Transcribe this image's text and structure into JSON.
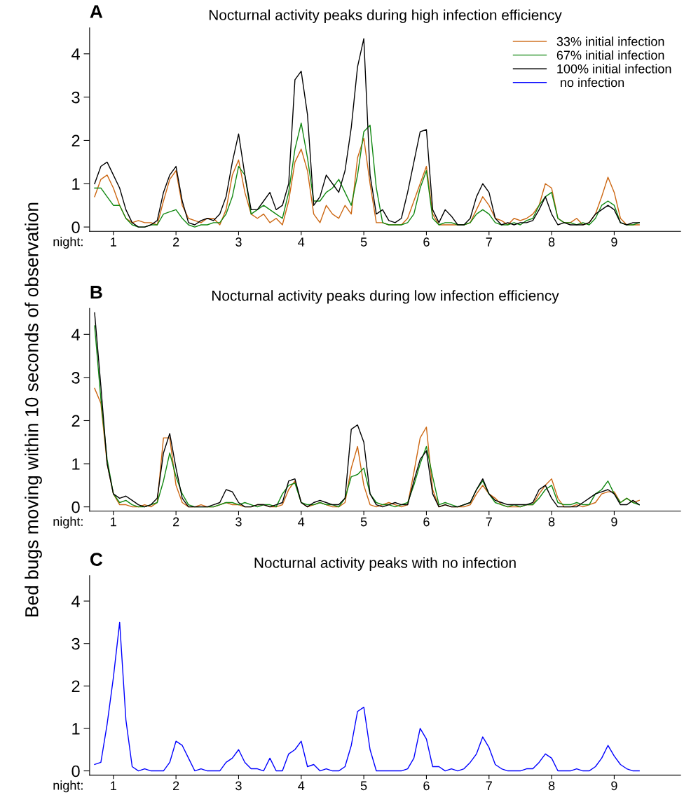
{
  "chart_data": [
    {
      "type": "line",
      "title": "Nocturnal activity peaks during high infection efficiency",
      "annotations": [
        "A"
      ],
      "xlabel": "night:",
      "xlim": [
        0.62,
        10.06
      ],
      "xticks": [
        1,
        2,
        3,
        4,
        5,
        6,
        7,
        8,
        9
      ],
      "ylim": [
        -0.1,
        4.6
      ],
      "yticks": [
        0,
        1,
        2,
        3,
        4
      ],
      "legend": "top right",
      "grid": false,
      "marker": "none",
      "line_style": "solid",
      "x": [
        0.7,
        0.8,
        0.9,
        1.0,
        1.1,
        1.2,
        1.3,
        1.4,
        1.5,
        1.6,
        1.7,
        1.8,
        1.9,
        2.0,
        2.1,
        2.2,
        2.3,
        2.4,
        2.5,
        2.6,
        2.7,
        2.8,
        2.9,
        3.0,
        3.1,
        3.2,
        3.3,
        3.4,
        3.5,
        3.6,
        3.7,
        3.8,
        3.9,
        4.0,
        4.1,
        4.2,
        4.3,
        4.4,
        4.5,
        4.6,
        4.7,
        4.8,
        4.9,
        5.0,
        5.1,
        5.2,
        5.3,
        5.4,
        5.5,
        5.6,
        5.7,
        5.8,
        5.9,
        6.0,
        6.1,
        6.2,
        6.3,
        6.4,
        6.5,
        6.6,
        6.7,
        6.8,
        6.9,
        7.0,
        7.1,
        7.2,
        7.3,
        7.4,
        7.5,
        7.6,
        7.7,
        7.8,
        7.9,
        8.0,
        8.1,
        8.2,
        8.3,
        8.4,
        8.5,
        8.6,
        8.7,
        8.8,
        8.9,
        9.0,
        9.1,
        9.2,
        9.3,
        9.4
      ],
      "series": [
        {
          "name": "33% initial infection",
          "color": "#cc6611",
          "values": [
            0.7,
            1.1,
            1.2,
            0.9,
            0.5,
            0.2,
            0.1,
            0.15,
            0.1,
            0.1,
            0.05,
            0.6,
            1.1,
            1.3,
            0.5,
            0.2,
            0.15,
            0.1,
            0.2,
            0.2,
            0.05,
            0.4,
            1.2,
            1.55,
            0.8,
            0.3,
            0.2,
            0.3,
            0.1,
            0.2,
            0.05,
            0.6,
            1.5,
            1.8,
            1.3,
            0.3,
            0.1,
            0.5,
            0.3,
            0.2,
            0.5,
            0.3,
            1.6,
            2.05,
            1.0,
            0.1,
            0.1,
            0.05,
            0.05,
            0.05,
            0.2,
            0.6,
            1.0,
            1.4,
            0.3,
            0.05,
            0.05,
            0.05,
            0.05,
            0.05,
            0.1,
            0.4,
            0.7,
            0.5,
            0.2,
            0.15,
            0.05,
            0.2,
            0.15,
            0.2,
            0.3,
            0.5,
            1.0,
            0.9,
            0.2,
            0.1,
            0.1,
            0.2,
            0.05,
            0.1,
            0.3,
            0.7,
            1.15,
            0.8,
            0.2,
            0.05,
            0.05,
            0.05
          ]
        },
        {
          "name": "67% initial infection",
          "color": "#118811",
          "values": [
            0.9,
            0.9,
            0.7,
            0.5,
            0.5,
            0.2,
            0.05,
            0.0,
            0.0,
            0.05,
            0.05,
            0.3,
            0.35,
            0.4,
            0.2,
            0.05,
            0.0,
            0.05,
            0.05,
            0.1,
            0.1,
            0.3,
            0.7,
            1.4,
            1.2,
            0.3,
            0.4,
            0.5,
            0.4,
            0.3,
            0.2,
            0.8,
            1.8,
            2.4,
            1.6,
            0.6,
            0.6,
            0.8,
            0.9,
            1.1,
            0.8,
            0.5,
            1.2,
            2.2,
            2.35,
            0.9,
            0.1,
            0.05,
            0.05,
            0.05,
            0.1,
            0.3,
            0.9,
            1.3,
            0.2,
            0.05,
            0.1,
            0.1,
            0.05,
            0.05,
            0.1,
            0.3,
            0.4,
            0.3,
            0.1,
            0.05,
            0.05,
            0.1,
            0.05,
            0.15,
            0.2,
            0.5,
            0.7,
            0.8,
            0.2,
            0.1,
            0.1,
            0.05,
            0.1,
            0.05,
            0.2,
            0.5,
            0.6,
            0.5,
            0.1,
            0.05,
            0.05,
            0.1
          ]
        },
        {
          "name": "100% initial infection",
          "color": "#000000",
          "values": [
            1.0,
            1.4,
            1.5,
            1.2,
            0.9,
            0.4,
            0.1,
            0.0,
            0.0,
            0.05,
            0.15,
            0.8,
            1.2,
            1.4,
            0.6,
            0.1,
            0.05,
            0.15,
            0.2,
            0.15,
            0.3,
            0.7,
            1.5,
            2.15,
            1.2,
            0.4,
            0.4,
            0.6,
            0.8,
            0.4,
            0.5,
            1.0,
            3.4,
            3.6,
            2.6,
            0.5,
            0.7,
            1.2,
            1.0,
            0.8,
            1.3,
            2.3,
            3.7,
            4.35,
            1.2,
            0.3,
            0.4,
            0.15,
            0.1,
            0.2,
            0.8,
            1.5,
            2.2,
            2.25,
            0.4,
            0.1,
            0.4,
            0.25,
            0.05,
            0.05,
            0.2,
            0.7,
            1.0,
            0.8,
            0.2,
            0.05,
            0.1,
            0.05,
            0.1,
            0.1,
            0.15,
            0.4,
            0.7,
            0.3,
            0.05,
            0.1,
            0.05,
            0.05,
            0.05,
            0.1,
            0.3,
            0.4,
            0.5,
            0.4,
            0.1,
            0.05,
            0.1,
            0.1
          ]
        }
      ]
    },
    {
      "type": "line",
      "title": "Nocturnal activity peaks during low infection efficiency",
      "annotations": [
        "B"
      ],
      "xlabel": "night:",
      "ylabel": "Bed bugs moving within 10 seconds of observation",
      "xlim": [
        0.62,
        10.06
      ],
      "xticks": [
        1,
        2,
        3,
        4,
        5,
        6,
        7,
        8,
        9
      ],
      "ylim": [
        -0.1,
        4.6
      ],
      "yticks": [
        0,
        1,
        2,
        3,
        4
      ],
      "grid": false,
      "marker": "none",
      "line_style": "solid",
      "x": [
        0.7,
        0.8,
        0.9,
        1.0,
        1.1,
        1.2,
        1.3,
        1.4,
        1.5,
        1.6,
        1.7,
        1.8,
        1.9,
        2.0,
        2.1,
        2.2,
        2.3,
        2.4,
        2.5,
        2.6,
        2.7,
        2.8,
        2.9,
        3.0,
        3.1,
        3.2,
        3.3,
        3.4,
        3.5,
        3.6,
        3.7,
        3.8,
        3.9,
        4.0,
        4.1,
        4.2,
        4.3,
        4.4,
        4.5,
        4.6,
        4.7,
        4.8,
        4.9,
        5.0,
        5.1,
        5.2,
        5.3,
        5.4,
        5.5,
        5.6,
        5.7,
        5.8,
        5.9,
        6.0,
        6.1,
        6.2,
        6.3,
        6.4,
        6.5,
        6.6,
        6.7,
        6.8,
        6.9,
        7.0,
        7.1,
        7.2,
        7.3,
        7.4,
        7.5,
        7.6,
        7.7,
        7.8,
        7.9,
        8.0,
        8.1,
        8.2,
        8.3,
        8.4,
        8.5,
        8.6,
        8.7,
        8.8,
        8.9,
        9.0,
        9.1,
        9.2,
        9.3,
        9.4
      ],
      "series": [
        {
          "color": "#cc6611",
          "values": [
            2.75,
            2.4,
            1.0,
            0.3,
            0.05,
            0.05,
            0.0,
            0.0,
            0.05,
            0.0,
            0.1,
            1.6,
            1.6,
            0.5,
            0.1,
            0.0,
            0.0,
            0.05,
            0.0,
            0.0,
            0.05,
            0.1,
            0.05,
            0.05,
            0.0,
            0.0,
            0.05,
            0.05,
            0.0,
            0.0,
            0.05,
            0.4,
            0.6,
            0.1,
            0.0,
            0.05,
            0.1,
            0.05,
            0.0,
            0.0,
            0.1,
            0.9,
            1.4,
            0.5,
            0.05,
            0.0,
            0.05,
            0.1,
            0.05,
            0.0,
            0.05,
            0.8,
            1.6,
            1.85,
            0.4,
            0.0,
            0.05,
            0.0,
            0.0,
            0.0,
            0.05,
            0.3,
            0.5,
            0.3,
            0.2,
            0.05,
            0.0,
            0.0,
            0.0,
            0.05,
            0.05,
            0.3,
            0.5,
            0.65,
            0.2,
            0.0,
            0.0,
            0.05,
            0.0,
            0.05,
            0.1,
            0.3,
            0.35,
            0.35,
            0.1,
            0.2,
            0.1,
            0.15
          ]
        },
        {
          "color": "#118811",
          "values": [
            4.2,
            2.5,
            1.1,
            0.3,
            0.1,
            0.15,
            0.05,
            0.0,
            0.0,
            0.05,
            0.1,
            0.6,
            1.25,
            0.7,
            0.3,
            0.05,
            0.0,
            0.0,
            0.0,
            0.0,
            0.05,
            0.1,
            0.1,
            0.05,
            0.1,
            0.05,
            0.0,
            0.05,
            0.05,
            0.0,
            0.3,
            0.5,
            0.55,
            0.1,
            0.05,
            0.05,
            0.1,
            0.05,
            0.05,
            0.0,
            0.2,
            0.7,
            0.75,
            0.9,
            0.3,
            0.1,
            0.05,
            0.05,
            0.0,
            0.05,
            0.1,
            0.5,
            1.0,
            1.4,
            0.7,
            0.05,
            0.1,
            0.05,
            0.0,
            0.05,
            0.1,
            0.4,
            0.6,
            0.3,
            0.1,
            0.05,
            0.0,
            0.05,
            0.0,
            0.05,
            0.05,
            0.2,
            0.4,
            0.5,
            0.1,
            0.05,
            0.05,
            0.1,
            0.05,
            0.05,
            0.3,
            0.4,
            0.6,
            0.3,
            0.1,
            0.2,
            0.1,
            0.05
          ]
        },
        {
          "color": "#000000",
          "values": [
            4.5,
            2.8,
            1.0,
            0.3,
            0.2,
            0.25,
            0.15,
            0.05,
            0.0,
            0.05,
            0.2,
            1.25,
            1.7,
            0.9,
            0.2,
            0.0,
            0.0,
            0.0,
            0.0,
            0.05,
            0.1,
            0.4,
            0.35,
            0.1,
            0.0,
            0.0,
            0.05,
            0.05,
            0.0,
            0.05,
            0.1,
            0.6,
            0.65,
            0.1,
            0.0,
            0.1,
            0.15,
            0.1,
            0.05,
            0.05,
            0.2,
            1.8,
            1.9,
            1.5,
            0.3,
            0.05,
            0.0,
            0.05,
            0.1,
            0.05,
            0.05,
            0.6,
            1.1,
            1.3,
            0.3,
            0.0,
            0.05,
            0.0,
            0.0,
            0.05,
            0.1,
            0.4,
            0.65,
            0.3,
            0.15,
            0.1,
            0.05,
            0.05,
            0.05,
            0.05,
            0.1,
            0.4,
            0.5,
            0.2,
            0.0,
            0.0,
            0.0,
            0.0,
            0.1,
            0.2,
            0.3,
            0.35,
            0.4,
            0.3,
            0.05,
            0.05,
            0.15,
            0.05
          ]
        }
      ]
    },
    {
      "type": "line",
      "title": "Nocturnal activity peaks with no infection",
      "annotations": [
        "C"
      ],
      "xlabel": "night:",
      "xlim": [
        0.62,
        10.06
      ],
      "xticks": [
        1,
        2,
        3,
        4,
        5,
        6,
        7,
        8,
        9
      ],
      "ylim": [
        -0.1,
        4.6
      ],
      "yticks": [
        0,
        1,
        2,
        3,
        4
      ],
      "grid": false,
      "marker": "none",
      "line_style": "solid",
      "x": [
        0.7,
        0.8,
        0.9,
        1.0,
        1.1,
        1.2,
        1.3,
        1.4,
        1.5,
        1.6,
        1.7,
        1.8,
        1.9,
        2.0,
        2.1,
        2.2,
        2.3,
        2.4,
        2.5,
        2.6,
        2.7,
        2.8,
        2.9,
        3.0,
        3.1,
        3.2,
        3.3,
        3.4,
        3.5,
        3.6,
        3.7,
        3.8,
        3.9,
        4.0,
        4.1,
        4.2,
        4.3,
        4.4,
        4.5,
        4.6,
        4.7,
        4.8,
        4.9,
        5.0,
        5.1,
        5.2,
        5.3,
        5.4,
        5.5,
        5.6,
        5.7,
        5.8,
        5.9,
        6.0,
        6.1,
        6.2,
        6.3,
        6.4,
        6.5,
        6.6,
        6.7,
        6.8,
        6.9,
        7.0,
        7.1,
        7.2,
        7.3,
        7.4,
        7.5,
        7.6,
        7.7,
        7.8,
        7.9,
        8.0,
        8.1,
        8.2,
        8.3,
        8.4,
        8.5,
        8.6,
        8.7,
        8.8,
        8.9,
        9.0,
        9.1,
        9.2,
        9.3,
        9.4
      ],
      "series": [
        {
          "name": " no infection",
          "color": "#0000ff",
          "values": [
            0.15,
            0.2,
            1.1,
            2.2,
            3.5,
            1.2,
            0.1,
            0.0,
            0.05,
            0.0,
            0.0,
            0.0,
            0.2,
            0.7,
            0.6,
            0.3,
            0.0,
            0.05,
            0.0,
            0.0,
            0.0,
            0.2,
            0.3,
            0.5,
            0.2,
            0.05,
            0.05,
            0.0,
            0.3,
            0.0,
            0.0,
            0.4,
            0.5,
            0.7,
            0.1,
            0.15,
            0.0,
            0.05,
            0.0,
            0.0,
            0.1,
            0.6,
            1.4,
            1.5,
            0.5,
            0.0,
            0.0,
            0.0,
            0.0,
            0.0,
            0.05,
            0.3,
            1.0,
            0.75,
            0.1,
            0.1,
            0.0,
            0.05,
            0.0,
            0.05,
            0.2,
            0.4,
            0.8,
            0.55,
            0.15,
            0.05,
            0.0,
            0.0,
            0.0,
            0.05,
            0.05,
            0.2,
            0.4,
            0.3,
            0.0,
            0.0,
            0.0,
            0.05,
            0.0,
            0.0,
            0.1,
            0.3,
            0.6,
            0.35,
            0.15,
            0.05,
            0.0,
            0.0
          ]
        }
      ]
    }
  ]
}
